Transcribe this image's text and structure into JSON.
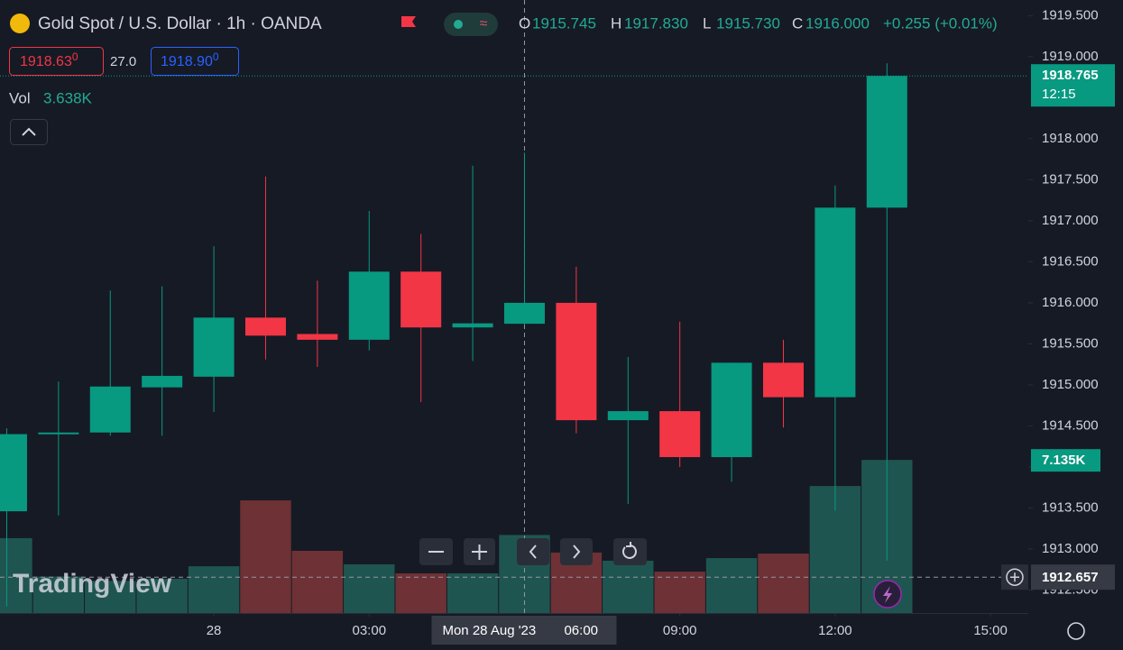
{
  "header": {
    "title": "Gold Spot / U.S. Dollar · 1h · OANDA",
    "ohlc": [
      {
        "key": "O",
        "value": "1915.745"
      },
      {
        "key": "H",
        "value": "1917.830"
      },
      {
        "key": "L",
        "value": "1915.730"
      },
      {
        "key": "C",
        "value": "1916.000"
      }
    ],
    "change": "+0.255 (+0.01%)",
    "bid": {
      "main": "1918.63",
      "fraction": "0"
    },
    "spread": "27.0",
    "ask": {
      "main": "1918.90",
      "fraction": "0"
    },
    "vol_label": "Vol",
    "vol_value": "3.638K"
  },
  "watermark": "TradingView",
  "chart_data": {
    "type": "candlestick",
    "x": [
      -4,
      -3,
      -2,
      -1,
      0,
      1,
      2,
      3,
      4,
      5,
      6,
      7,
      8,
      9,
      10,
      11,
      12,
      13
    ],
    "open": [
      1913.46,
      1914.4,
      1914.42,
      1914.97,
      1915.1,
      1915.82,
      1915.62,
      1915.55,
      1916.38,
      1915.7,
      1915.745,
      1916.0,
      1914.57,
      1914.68,
      1914.12,
      1915.27,
      1914.85,
      1917.16
    ],
    "high": [
      1914.47,
      1915.04,
      1916.15,
      1916.2,
      1916.69,
      1917.54,
      1916.27,
      1917.12,
      1916.84,
      1917.67,
      1917.83,
      1916.44,
      1915.34,
      1915.77,
      1915.27,
      1915.55,
      1917.43,
      1918.92
    ],
    "low": [
      1912.3,
      1913.41,
      1914.38,
      1914.38,
      1914.67,
      1915.31,
      1915.22,
      1915.42,
      1914.79,
      1915.29,
      1915.73,
      1914.41,
      1913.55,
      1914.0,
      1913.82,
      1914.48,
      1913.47,
      1912.86
    ],
    "close": [
      1914.4,
      1914.42,
      1914.98,
      1915.11,
      1915.82,
      1915.6,
      1915.55,
      1916.38,
      1915.7,
      1915.75,
      1916.0,
      1914.57,
      1914.68,
      1914.12,
      1915.27,
      1914.85,
      1917.16,
      1918.765
    ],
    "up_color": "#089981",
    "down_color": "#f23645",
    "xlim": [
      -4.13,
      15.73
    ],
    "ylim": [
      1912.22,
      1919.69
    ],
    "xticks": [
      {
        "value": 0,
        "label": "28"
      },
      {
        "value": 3,
        "label": "03:00"
      },
      {
        "value": 9,
        "label": "09:00"
      },
      {
        "value": 12,
        "label": "12:00"
      },
      {
        "value": 15,
        "label": "15:00"
      }
    ],
    "yticks": [
      {
        "value": 1919.5,
        "label": "1919.500"
      },
      {
        "value": 1919,
        "label": "1919.000"
      },
      {
        "value": 1918,
        "label": "1918.000"
      },
      {
        "value": 1917.5,
        "label": "1917.500"
      },
      {
        "value": 1917,
        "label": "1917.000"
      },
      {
        "value": 1916.5,
        "label": "1916.500"
      },
      {
        "value": 1916,
        "label": "1916.000"
      },
      {
        "value": 1915.5,
        "label": "1915.500"
      },
      {
        "value": 1915,
        "label": "1915.000"
      },
      {
        "value": 1914.5,
        "label": "1914.500"
      },
      {
        "value": 1914,
        "label": "1914.000"
      },
      {
        "value": 1913.5,
        "label": "1913.500"
      },
      {
        "value": 1913,
        "label": "1913.000"
      },
      {
        "value": 1912.5,
        "label": "1912.500"
      }
    ],
    "last_price": {
      "value": 1918.765,
      "label": "1918.765",
      "countdown": "12:15"
    },
    "volume": {
      "values": [
        3.49,
        1.7,
        1.5,
        1.6,
        2.18,
        5.25,
        2.9,
        2.27,
        1.85,
        1.85,
        3.638,
        2.82,
        2.44,
        1.93,
        2.56,
        2.77,
        5.92,
        7.135
      ],
      "value_labels": [
        null,
        null,
        null,
        null,
        null,
        null,
        null,
        null,
        null,
        null,
        null,
        null,
        null,
        null,
        null,
        null,
        null,
        "7.135K"
      ],
      "y2lim": [
        0,
        28.57
      ],
      "up_color": "#1f5550",
      "down_color": "#6e3135"
    },
    "crosshair": {
      "x": 6,
      "y": 1912.657,
      "y_label": "1912.657",
      "date_label": "Mon 28 Aug '23",
      "time_label": "06:00"
    }
  }
}
